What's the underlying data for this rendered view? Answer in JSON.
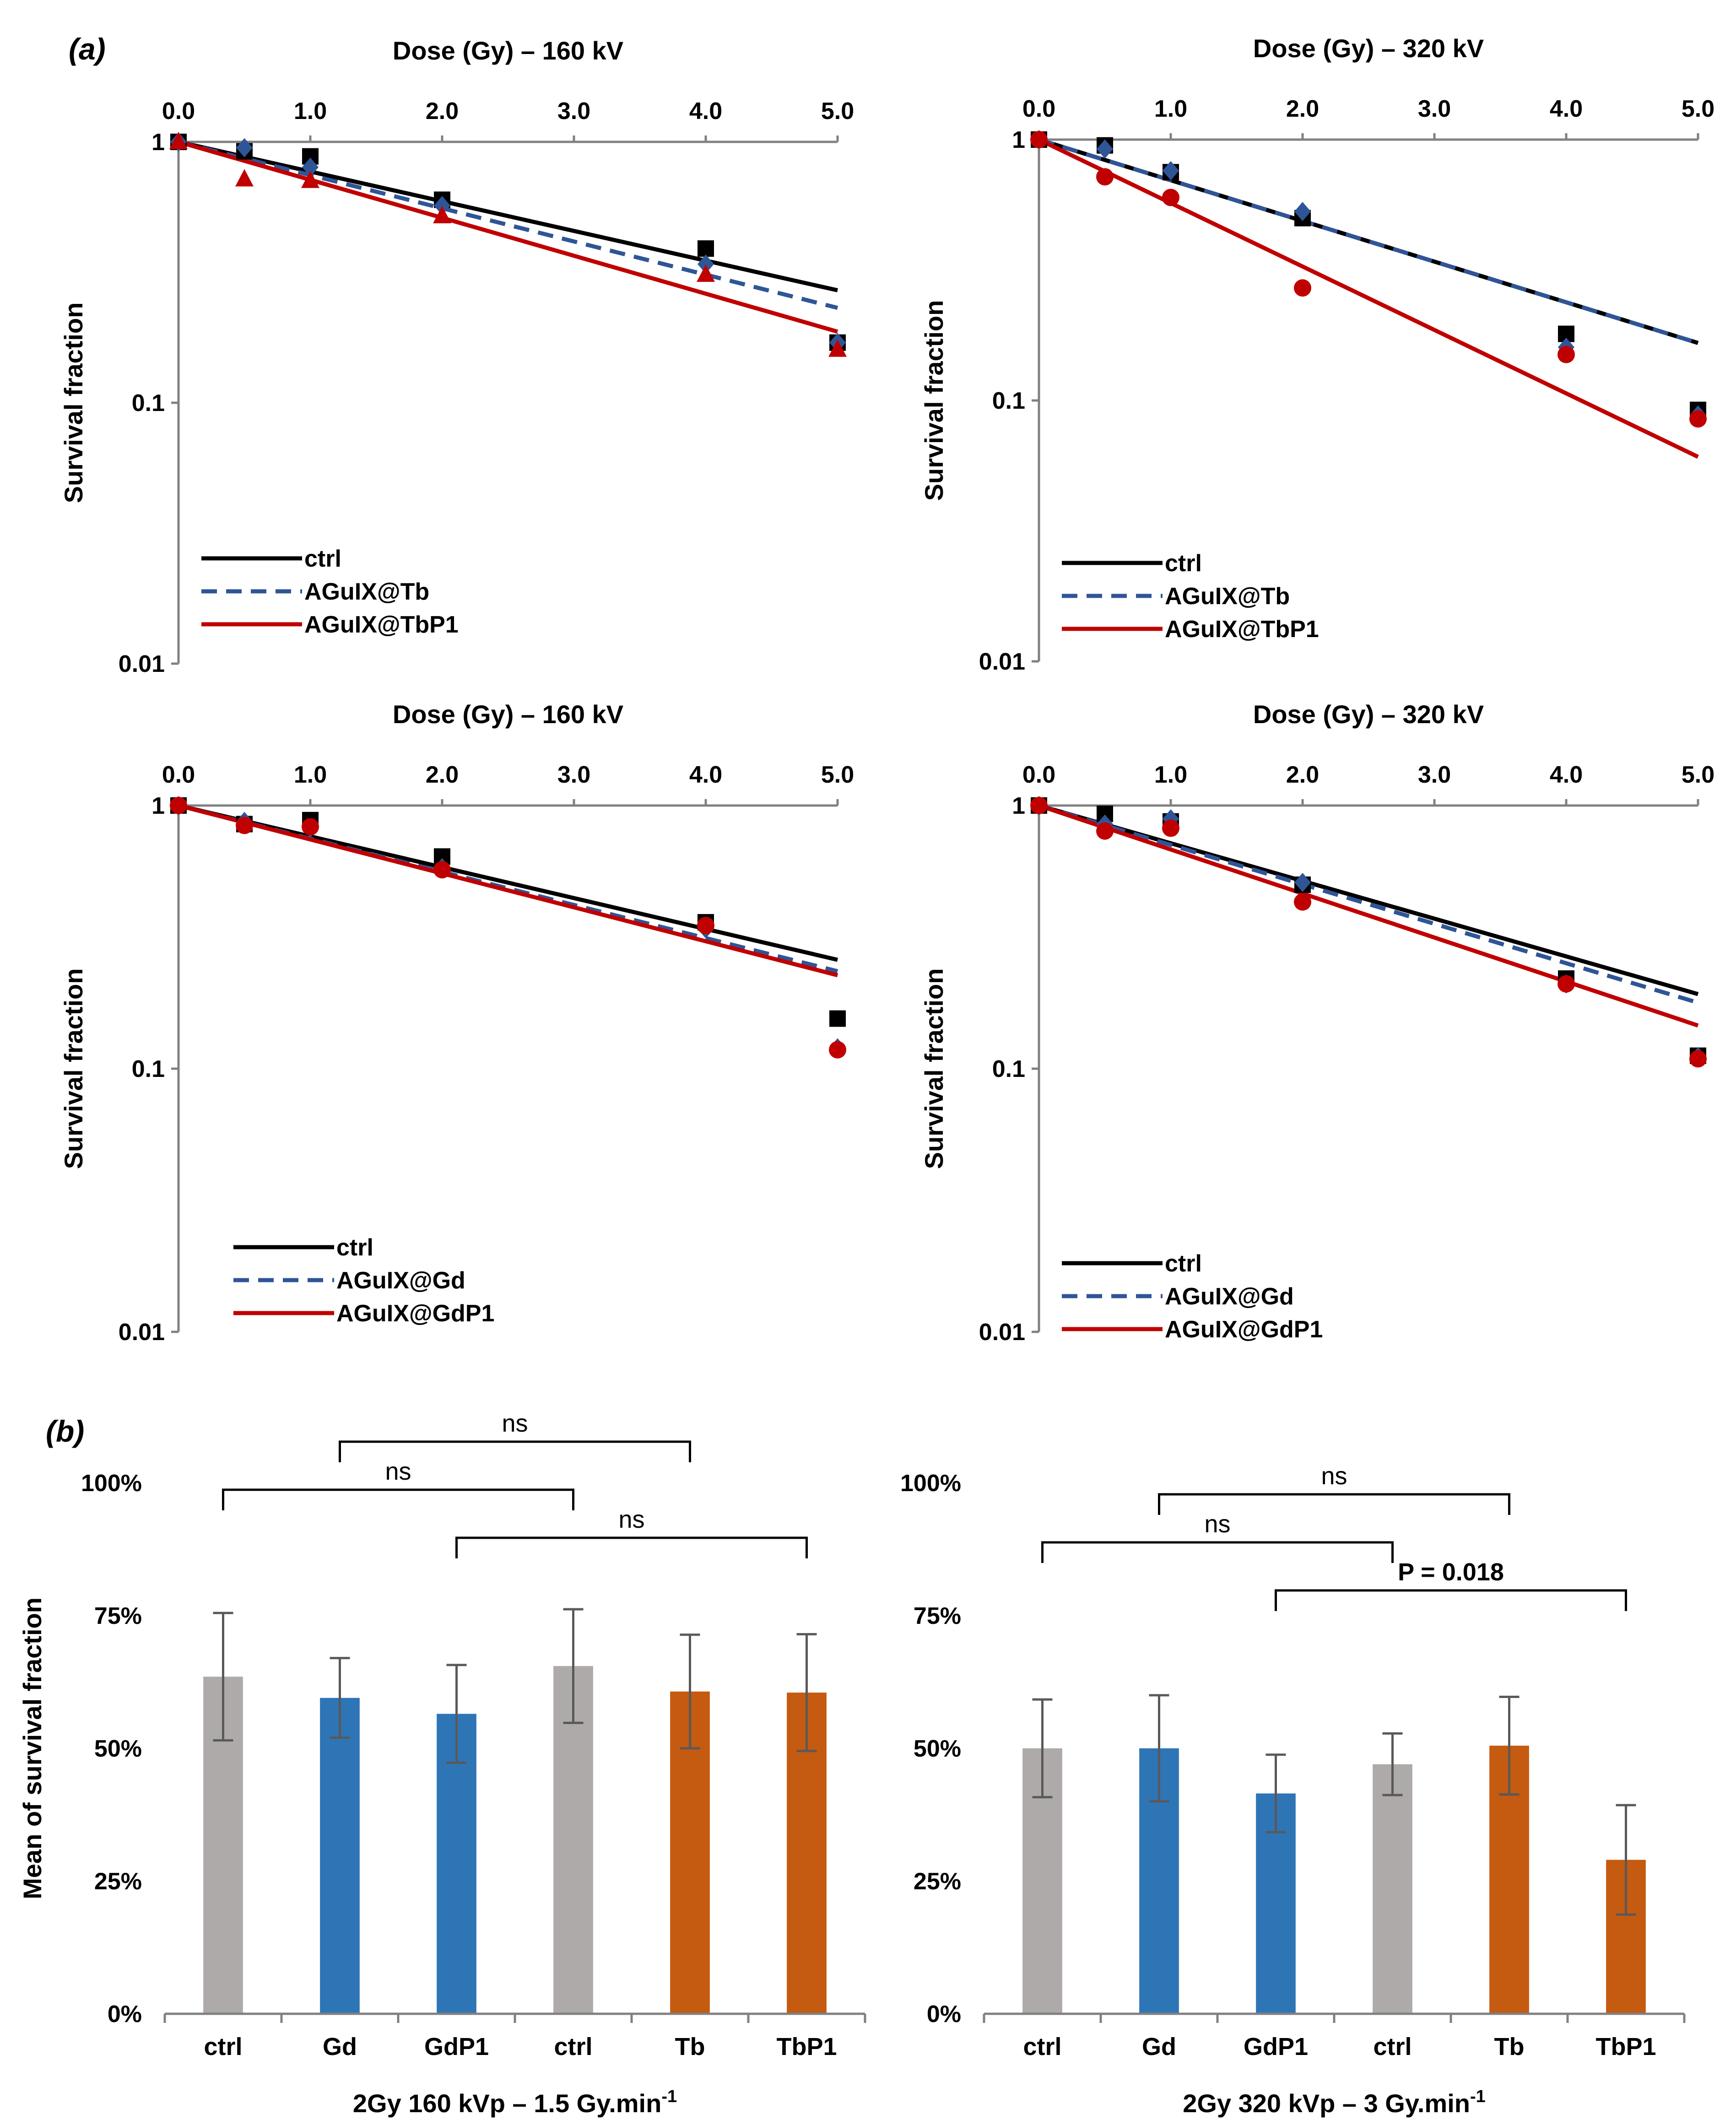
{
  "panel_labels": {
    "a": "(a)",
    "b": "(b)"
  },
  "chart_data": [
    {
      "type": "scatter",
      "panel": "a",
      "title": "Dose (Gy) – 160 kV",
      "xlabel": "Dose (Gy) – 160 kV",
      "ylabel": "Survival fraction",
      "xlim": [
        0,
        5
      ],
      "ylim": [
        0.01,
        1
      ],
      "yscale": "log",
      "xticks": [
        "0.0",
        "1.0",
        "2.0",
        "3.0",
        "4.0",
        "5.0"
      ],
      "yticks": [
        "1",
        "0.1",
        "0.01"
      ],
      "legend_position": "bottom-left",
      "series": [
        {
          "name": "ctrl",
          "color": "#000000",
          "dash": "solid",
          "marker": "square",
          "x": [
            0,
            0.5,
            1,
            2,
            4,
            5
          ],
          "y": [
            1,
            0.92,
            0.88,
            0.6,
            0.39,
            0.17
          ],
          "fit_alpha": 0.262
        },
        {
          "name": "AGuIX@Tb",
          "color": "#2f5597",
          "dash": "dash",
          "marker": "diamond",
          "x": [
            0,
            0.5,
            1,
            2,
            4,
            5
          ],
          "y": [
            1,
            0.95,
            0.8,
            0.57,
            0.34,
            0.17
          ],
          "fit_alpha": 0.293
        },
        {
          "name": "AGuIX@TbP1",
          "color": "#c00000",
          "dash": "solid",
          "marker": "triangle",
          "x": [
            0,
            0.5,
            1,
            2,
            4,
            5
          ],
          "y": [
            1,
            0.72,
            0.71,
            0.52,
            0.31,
            0.16
          ],
          "fit_alpha": 0.335
        }
      ]
    },
    {
      "type": "scatter",
      "panel": "a",
      "title": "Dose (Gy) – 320 kV",
      "xlabel": "Dose (Gy) – 320 kV",
      "ylabel": "Survival fraction",
      "xlim": [
        0,
        5
      ],
      "ylim": [
        0.01,
        1
      ],
      "yscale": "log",
      "xticks": [
        "0.0",
        "1.0",
        "2.0",
        "3.0",
        "4.0",
        "5.0"
      ],
      "yticks": [
        "1",
        "0.1",
        "0.01"
      ],
      "legend_position": "bottom-left",
      "series": [
        {
          "name": "ctrl",
          "color": "#000000",
          "dash": "solid",
          "marker": "square",
          "x": [
            0,
            0.5,
            1,
            2,
            4,
            5
          ],
          "y": [
            1,
            0.95,
            0.75,
            0.5,
            0.18,
            0.092
          ],
          "fit_alpha": 0.359
        },
        {
          "name": "AGuIX@Tb",
          "color": "#2f5597",
          "dash": "dash",
          "marker": "diamond",
          "x": [
            0,
            0.5,
            1,
            2,
            4,
            5
          ],
          "y": [
            1,
            0.92,
            0.76,
            0.53,
            0.16,
            0.088
          ],
          "fit_alpha": 0.359
        },
        {
          "name": "AGuIX@TbP1",
          "color": "#c00000",
          "dash": "solid",
          "marker": "circle",
          "x": [
            0,
            0.5,
            1,
            2,
            4,
            5
          ],
          "y": [
            1,
            0.72,
            0.6,
            0.27,
            0.15,
            0.085
          ],
          "fit_alpha": 0.56
        }
      ]
    },
    {
      "type": "scatter",
      "panel": "a",
      "title": "Dose (Gy) – 160 kV",
      "xlabel": "Dose (Gy) – 160 kV",
      "ylabel": "Survival fraction",
      "xlim": [
        0,
        5
      ],
      "ylim": [
        0.01,
        1
      ],
      "yscale": "log",
      "xticks": [
        "0.0",
        "1.0",
        "2.0",
        "3.0",
        "4.0",
        "5.0"
      ],
      "yticks": [
        "1",
        "0.1",
        "0.01"
      ],
      "legend_position": "bottom-left",
      "series": [
        {
          "name": "ctrl",
          "color": "#000000",
          "dash": "solid",
          "marker": "square",
          "x": [
            0,
            0.5,
            1,
            2,
            4,
            5
          ],
          "y": [
            1,
            0.85,
            0.88,
            0.64,
            0.36,
            0.155
          ],
          "fit_alpha": 0.27
        },
        {
          "name": "AGuIX@Gd",
          "color": "#2f5597",
          "dash": "dash",
          "marker": "diamond",
          "x": [
            0,
            0.5,
            1,
            2,
            4,
            5
          ],
          "y": [
            1,
            0.87,
            0.82,
            0.58,
            0.34,
            0.12
          ],
          "fit_alpha": 0.29
        },
        {
          "name": "AGuIX@GdP1",
          "color": "#c00000",
          "dash": "solid",
          "marker": "circle",
          "x": [
            0,
            0.5,
            1,
            2,
            4,
            5
          ],
          "y": [
            1,
            0.84,
            0.83,
            0.57,
            0.35,
            0.118
          ],
          "fit_alpha": 0.297
        }
      ]
    },
    {
      "type": "scatter",
      "panel": "a",
      "title": "Dose (Gy) – 320 kV",
      "xlabel": "Dose (Gy) – 320 kV",
      "ylabel": "Survival fraction",
      "xlim": [
        0,
        5
      ],
      "ylim": [
        0.01,
        1
      ],
      "yscale": "log",
      "xticks": [
        "0.0",
        "1.0",
        "2.0",
        "3.0",
        "4.0",
        "5.0"
      ],
      "yticks": [
        "1",
        "0.1",
        "0.01"
      ],
      "legend_position": "bottom-left",
      "series": [
        {
          "name": "ctrl",
          "color": "#000000",
          "dash": "solid",
          "marker": "square",
          "x": [
            0,
            0.5,
            1,
            2,
            4,
            5
          ],
          "y": [
            1,
            0.93,
            0.87,
            0.5,
            0.22,
            0.112
          ],
          "fit_alpha": 0.33
        },
        {
          "name": "AGuIX@Gd",
          "color": "#2f5597",
          "dash": "dash",
          "marker": "diamond",
          "x": [
            0,
            0.5,
            1,
            2,
            4,
            5
          ],
          "y": [
            1,
            0.85,
            0.89,
            0.51,
            0.21,
            0.111
          ],
          "fit_alpha": 0.345
        },
        {
          "name": "AGuIX@GdP1",
          "color": "#c00000",
          "dash": "solid",
          "marker": "circle",
          "x": [
            0,
            0.5,
            1,
            2,
            4,
            5
          ],
          "y": [
            1,
            0.8,
            0.82,
            0.43,
            0.21,
            0.109
          ],
          "fit_alpha": 0.385
        }
      ]
    },
    {
      "type": "bar",
      "panel": "b",
      "title": "2Gy 160 kVp – 1.5 Gy.min",
      "title_sup": "-1",
      "xlabel": "2Gy 160 kVp – 1.5 Gy.min",
      "ylabel": "Mean of survival fraction",
      "ylim": [
        0,
        100
      ],
      "yticks": [
        "0%",
        "25%",
        "50%",
        "75%",
        "100%"
      ],
      "categories": [
        "ctrl",
        "Gd",
        "GdP1",
        "ctrl",
        "Tb",
        "TbP1"
      ],
      "values": [
        63.5,
        59.5,
        56.5,
        65.5,
        60.7,
        60.5
      ],
      "errors": [
        12,
        7.5,
        9.2,
        10.7,
        10.7,
        11
      ],
      "colors": [
        "#aeaaaa",
        "#2e75b6",
        "#2e75b6",
        "#aeaaaa",
        "#c55a11",
        "#c55a11"
      ],
      "comparisons": [
        {
          "from": 1,
          "to": 4,
          "label": "ns",
          "level": 3
        },
        {
          "from": 0,
          "to": 3,
          "label": "ns",
          "level": 2
        },
        {
          "from": 2,
          "to": 5,
          "label": "ns",
          "level": 1
        }
      ]
    },
    {
      "type": "bar",
      "panel": "b",
      "title": "2Gy 320 kVp – 3 Gy.min",
      "title_sup": "-1",
      "xlabel": "2Gy 320 kVp – 3 Gy.min",
      "ylabel": "",
      "ylim": [
        0,
        100
      ],
      "yticks": [
        "0%",
        "25%",
        "50%",
        "75%",
        "100%"
      ],
      "categories": [
        "ctrl",
        "Gd",
        "GdP1",
        "ctrl",
        "Tb",
        "TbP1"
      ],
      "values": [
        50,
        50,
        41.5,
        47,
        50.5,
        29
      ],
      "errors": [
        9.2,
        10,
        7.3,
        5.8,
        9.2,
        10.3
      ],
      "colors": [
        "#aeaaaa",
        "#2e75b6",
        "#2e75b6",
        "#aeaaaa",
        "#c55a11",
        "#c55a11"
      ],
      "comparisons": [
        {
          "from": 1,
          "to": 4,
          "label": "ns",
          "level": 3
        },
        {
          "from": 0,
          "to": 3,
          "label": "ns",
          "level": 2
        },
        {
          "from": 2,
          "to": 5,
          "label": "P = 0.018",
          "level": 1
        }
      ]
    }
  ]
}
